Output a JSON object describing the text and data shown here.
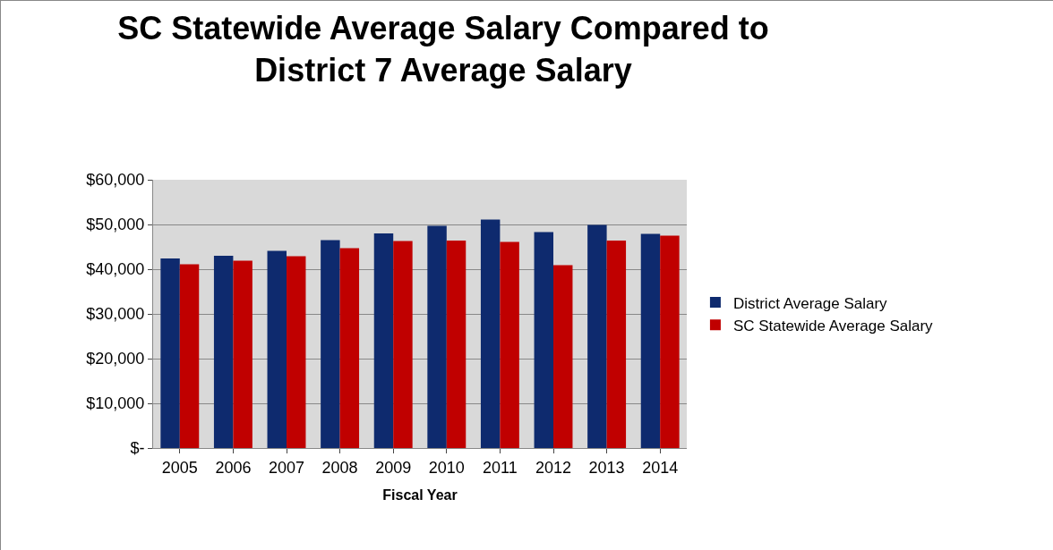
{
  "chart_data": {
    "type": "bar",
    "title": "SC Statewide Average Salary Compared to District 7 Average Salary",
    "xlabel": "Fiscal Year",
    "categories": [
      "2005",
      "2006",
      "2007",
      "2008",
      "2009",
      "2010",
      "2011",
      "2012",
      "2013",
      "2014"
    ],
    "series": [
      {
        "name": "District Average Salary",
        "color": "#0e2a6e",
        "values": [
          42400,
          43000,
          44100,
          46500,
          48000,
          49700,
          51100,
          48300,
          49900,
          47900
        ]
      },
      {
        "name": "SC Statewide Average Salary",
        "color": "#c00000",
        "values": [
          41100,
          41900,
          42900,
          44700,
          46300,
          46400,
          46100,
          40900,
          46400,
          47500
        ]
      }
    ],
    "ylim": [
      0,
      60000
    ],
    "yticks": [
      {
        "value": 0,
        "label": "$-"
      },
      {
        "value": 10000,
        "label": "$10,000"
      },
      {
        "value": 20000,
        "label": "$20,000"
      },
      {
        "value": 30000,
        "label": "$30,000"
      },
      {
        "value": 40000,
        "label": "$40,000"
      },
      {
        "value": 50000,
        "label": "$50,000"
      },
      {
        "value": 60000,
        "label": "$60,000"
      }
    ],
    "grid": "y",
    "legend": "right"
  }
}
